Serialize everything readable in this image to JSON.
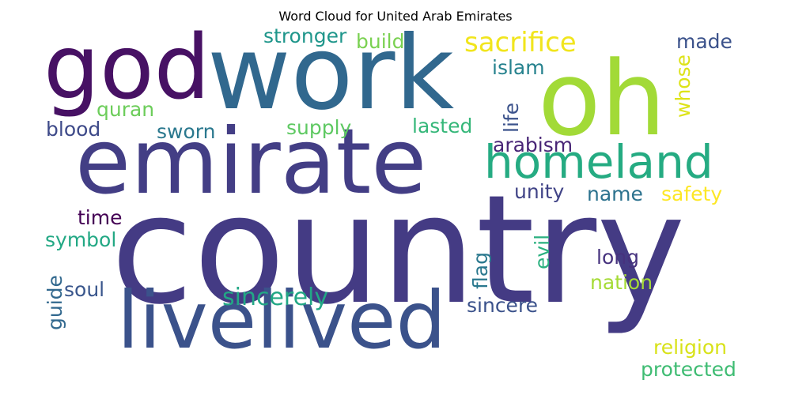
{
  "title": "Word Cloud for United Arab Emirates",
  "words": [
    {
      "id": "country",
      "text": "country",
      "color": "#443b84"
    },
    {
      "id": "emirate",
      "text": "emirate",
      "color": "#433e85"
    },
    {
      "id": "work",
      "text": "work",
      "color": "#31688e"
    },
    {
      "id": "oh",
      "text": "oh",
      "color": "#a2da37"
    },
    {
      "id": "god",
      "text": "god",
      "color": "#471164"
    },
    {
      "id": "livelived",
      "text": "livelived",
      "color": "#3b528b"
    },
    {
      "id": "homeland",
      "text": "homeland",
      "color": "#25ab82"
    },
    {
      "id": "sacrifice",
      "text": "sacrifice",
      "color": "#f1e51d"
    },
    {
      "id": "sincerely",
      "text": "sincerely",
      "color": "#22a785"
    },
    {
      "id": "stronger",
      "text": "stronger",
      "color": "#1f968b"
    },
    {
      "id": "build",
      "text": "build",
      "color": "#7ad151"
    },
    {
      "id": "made",
      "text": "made",
      "color": "#3b528b"
    },
    {
      "id": "islam",
      "text": "islam",
      "color": "#26828e"
    },
    {
      "id": "quran",
      "text": "quran",
      "color": "#6ccd5a"
    },
    {
      "id": "blood",
      "text": "blood",
      "color": "#3e4a89"
    },
    {
      "id": "sworn",
      "text": "sworn",
      "color": "#2a788e"
    },
    {
      "id": "supply",
      "text": "supply",
      "color": "#5ec962"
    },
    {
      "id": "lasted",
      "text": "lasted",
      "color": "#35b779"
    },
    {
      "id": "life",
      "text": "life",
      "color": "#3b528b"
    },
    {
      "id": "whose",
      "text": "whose",
      "color": "#dde318"
    },
    {
      "id": "arabism",
      "text": "arabism",
      "color": "#482576"
    },
    {
      "id": "unity",
      "text": "unity",
      "color": "#414487"
    },
    {
      "id": "name",
      "text": "name",
      "color": "#2c728e"
    },
    {
      "id": "safety",
      "text": "safety",
      "color": "#fde725"
    },
    {
      "id": "time",
      "text": "time",
      "color": "#440154"
    },
    {
      "id": "symbol",
      "text": "symbol",
      "color": "#22a884"
    },
    {
      "id": "flag",
      "text": "flag",
      "color": "#2a788e"
    },
    {
      "id": "evil",
      "text": "evil",
      "color": "#2ab07f"
    },
    {
      "id": "long",
      "text": "long",
      "color": "#46327e"
    },
    {
      "id": "nation",
      "text": "nation",
      "color": "#a5db36"
    },
    {
      "id": "soul",
      "text": "soul",
      "color": "#39568c"
    },
    {
      "id": "guide",
      "text": "guide",
      "color": "#31688e"
    },
    {
      "id": "sincere",
      "text": "sincere",
      "color": "#3b528b"
    },
    {
      "id": "religion",
      "text": "religion",
      "color": "#d8e219"
    },
    {
      "id": "protected",
      "text": "protected",
      "color": "#3fbc73"
    }
  ]
}
